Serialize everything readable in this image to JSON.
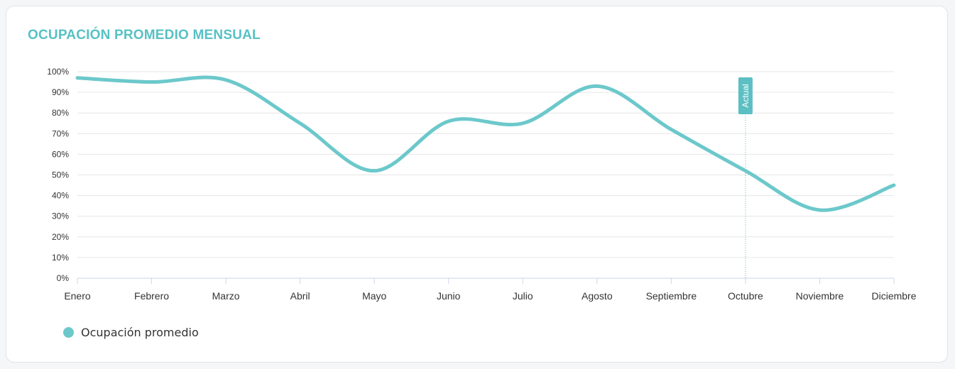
{
  "card": {
    "title": "OCUPACIÓN PROMEDIO MENSUAL"
  },
  "chart_data": {
    "type": "line",
    "title": "OCUPACIÓN PROMEDIO MENSUAL",
    "xlabel": "",
    "ylabel": "",
    "categories": [
      "Enero",
      "Febrero",
      "Marzo",
      "Abril",
      "Mayo",
      "Junio",
      "Julio",
      "Agosto",
      "Septiembre",
      "Octubre",
      "Noviembre",
      "Diciembre"
    ],
    "series": [
      {
        "name": "Ocupación promedio",
        "color": "#6cc8cb",
        "values": [
          97,
          95,
          96,
          75,
          52,
          76,
          75,
          93,
          72,
          52,
          33,
          45
        ]
      }
    ],
    "ylim": [
      0,
      100
    ],
    "yticks": [
      "0%",
      "10%",
      "20%",
      "30%",
      "40%",
      "50%",
      "60%",
      "70%",
      "80%",
      "90%",
      "100%"
    ],
    "grid": true,
    "smooth": true,
    "legend_position": "bottom-left",
    "marker": {
      "label": "Actual",
      "category": "Octubre",
      "color": "#5cbfc3"
    }
  }
}
